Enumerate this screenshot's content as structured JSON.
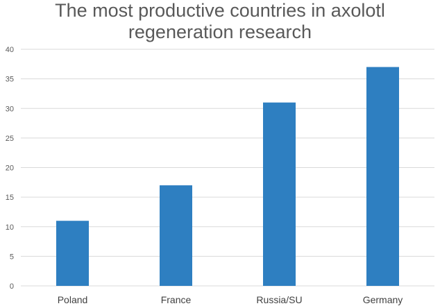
{
  "chart_data": {
    "type": "bar",
    "title_lines": [
      "The most productive countries in axolotl",
      "regeneration research"
    ],
    "categories": [
      "Poland",
      "France",
      "Russia/SU",
      "Germany"
    ],
    "values": [
      11,
      17,
      31,
      37
    ],
    "ylim": [
      0,
      40
    ],
    "yticks": [
      0,
      5,
      10,
      15,
      20,
      25,
      30,
      35,
      40
    ],
    "grid": true,
    "legend": "none",
    "bar_color": "#2e7fc1",
    "grid_color": "#d9d9d9"
  }
}
